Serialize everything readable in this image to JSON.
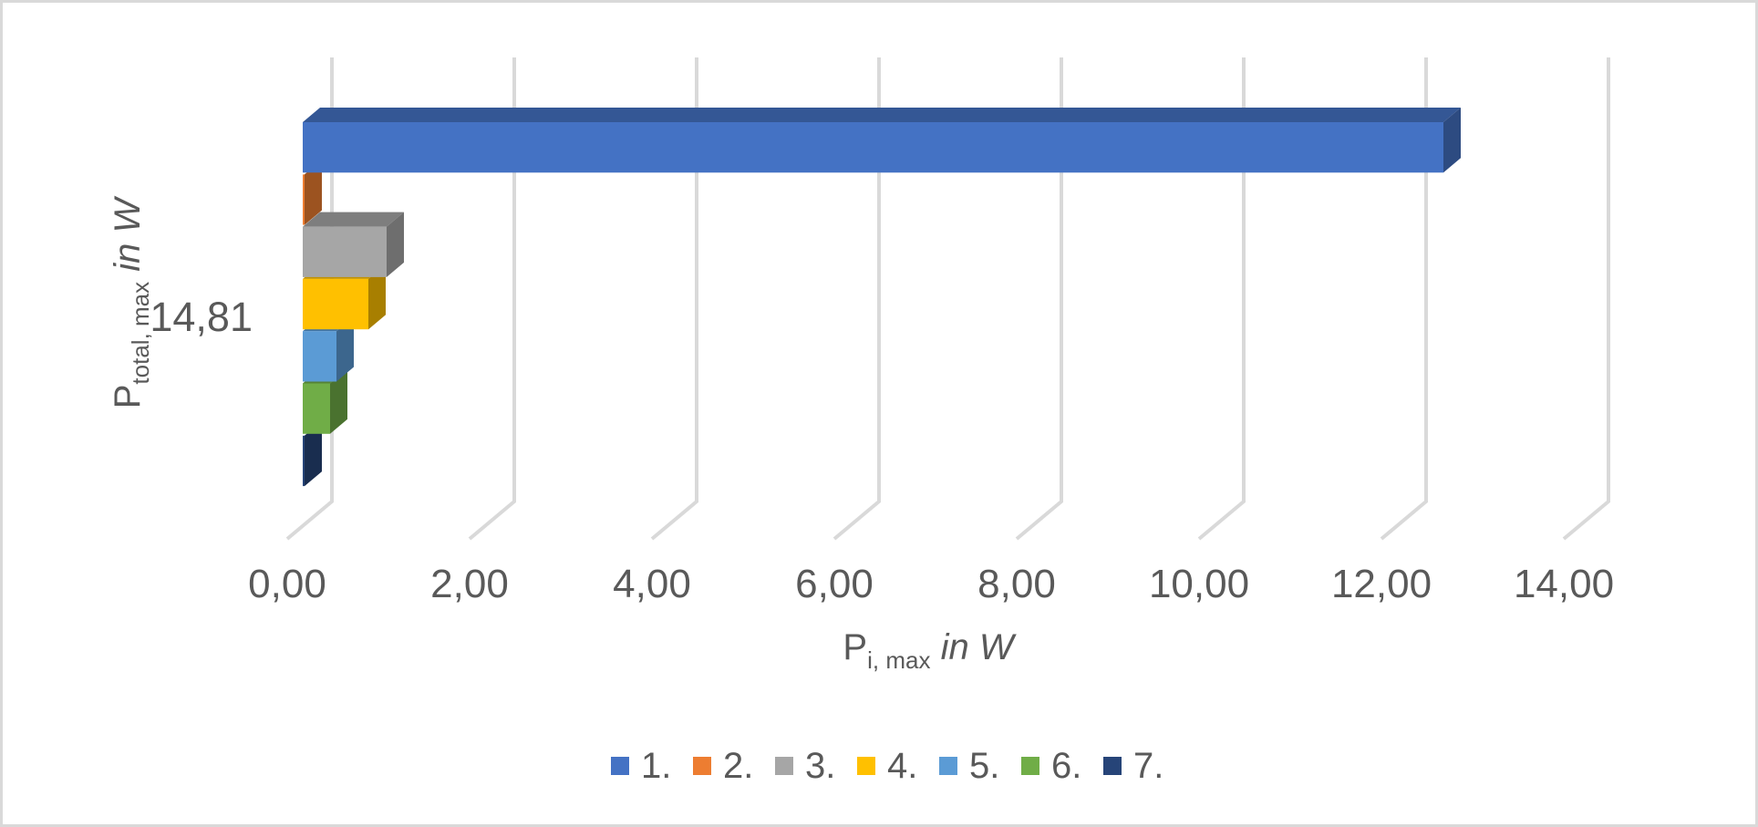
{
  "chart_data": {
    "type": "bar",
    "variant": "3d-horizontal-clustered",
    "title": "",
    "categories": [
      "14,81"
    ],
    "series": [
      {
        "name": "1.",
        "value": 12.51,
        "color": "#4472C4"
      },
      {
        "name": "2.",
        "value": 0.02,
        "color": "#ED7D31"
      },
      {
        "name": "3.",
        "value": 0.92,
        "color": "#A6A6A6"
      },
      {
        "name": "4.",
        "value": 0.72,
        "color": "#FFC000"
      },
      {
        "name": "5.",
        "value": 0.37,
        "color": "#5B9BD5"
      },
      {
        "name": "6.",
        "value": 0.3,
        "color": "#70AD47"
      },
      {
        "name": "7.",
        "value": 0.02,
        "color": "#264478"
      }
    ],
    "x_axis": {
      "ticks": [
        "0,00",
        "2,00",
        "4,00",
        "6,00",
        "8,00",
        "10,00",
        "12,00",
        "14,00"
      ],
      "range": [
        0,
        14
      ],
      "tick_step": 2,
      "title": {
        "base": "P",
        "sub": "i, max",
        "suffix": " in W"
      }
    },
    "y_axis": {
      "category_label": "14,81",
      "title": {
        "base": "P",
        "sub": "total, max",
        "suffix": " in W"
      }
    },
    "legend": {
      "position": "bottom",
      "entries": [
        "1.",
        "2.",
        "3.",
        "4.",
        "5.",
        "6.",
        "7."
      ]
    },
    "grid": true,
    "colors": {
      "gridline": "#D9D9D9",
      "text": "#595959",
      "border": "#D9D9D9",
      "background": "#FFFFFF"
    }
  }
}
